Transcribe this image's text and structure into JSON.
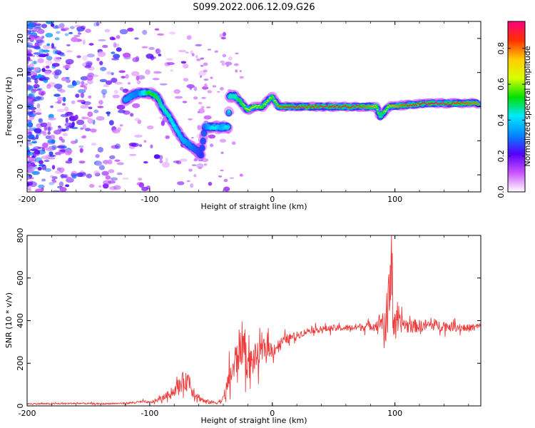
{
  "title": "S099.2022.006.12.09.G26",
  "colors": {
    "line": "#ef3b3b",
    "axis": "#000000",
    "blob_low": "#d7b8ff",
    "blob_mid": "#8f2cff",
    "blob_high": "#5b00e0",
    "green": "#00e000",
    "cyan": "#00c8ff",
    "blue": "#1f4cff",
    "red": "#ff0000",
    "yellow": "#ffd400"
  },
  "chart_data": [
    {
      "type": "heatmap",
      "xlabel": "Height of straight line (km)",
      "ylabel": "Frequency (Hz)",
      "xlim": [
        -200,
        170
      ],
      "ylim": [
        -25,
        25
      ],
      "xticks": [
        {
          "value": -200,
          "label": "-200"
        },
        {
          "value": -100,
          "label": "-100"
        },
        {
          "value": 0,
          "label": "0"
        },
        {
          "value": 100,
          "label": "100"
        }
      ],
      "yticks": [
        {
          "value": 20,
          "label": "20"
        },
        {
          "value": 10,
          "label": "10"
        },
        {
          "value": 0,
          "label": "0"
        },
        {
          "value": -10,
          "label": "-10"
        },
        {
          "value": -20,
          "label": "-20"
        }
      ],
      "colorbar": {
        "label": "Normalized spectral amplitude",
        "range": [
          0.0,
          0.95
        ],
        "ticks": [
          {
            "value": 0.0,
            "label": "0.0"
          },
          {
            "value": 0.2,
            "label": "0.2"
          },
          {
            "value": 0.4,
            "label": "0.4"
          },
          {
            "value": 0.6,
            "label": "0.6"
          },
          {
            "value": 0.8,
            "label": "0.8"
          }
        ],
        "colors": [
          "#ffffff",
          "#cc55ff",
          "#5500ff",
          "#0088ff",
          "#00e8ff",
          "#00e000",
          "#d8ff00",
          "#ffcc00",
          "#ff3000",
          "#ff0080"
        ]
      },
      "trace": [
        {
          "x": -120,
          "y": 2,
          "a": 0.35
        },
        {
          "x": -110,
          "y": 4,
          "a": 0.3
        },
        {
          "x": -100,
          "y": 4,
          "a": 0.55
        },
        {
          "x": -94,
          "y": 3,
          "a": 0.5
        },
        {
          "x": -90,
          "y": 0,
          "a": 0.45
        },
        {
          "x": -84,
          "y": -3,
          "a": 0.45
        },
        {
          "x": -78,
          "y": -7,
          "a": 0.4
        },
        {
          "x": -72,
          "y": -10,
          "a": 0.35
        },
        {
          "x": -65,
          "y": -12,
          "a": 0.3
        },
        {
          "x": -58,
          "y": -14,
          "a": 0.25
        },
        {
          "x": -55,
          "y": -6,
          "a": 0.3
        },
        {
          "x": -48,
          "y": -6,
          "a": 0.45
        },
        {
          "x": -42,
          "y": -6,
          "a": 0.35
        },
        {
          "x": -36,
          "y": -6,
          "a": 0.45
        },
        {
          "x": -35,
          "y": 3,
          "a": 0.45
        },
        {
          "x": -30,
          "y": 3,
          "a": 0.45
        },
        {
          "x": -25,
          "y": 1,
          "a": 0.55
        },
        {
          "x": -20,
          "y": -1,
          "a": 0.7
        },
        {
          "x": -15,
          "y": 0,
          "a": 0.72
        },
        {
          "x": -8,
          "y": 0,
          "a": 0.55
        },
        {
          "x": -3,
          "y": 2,
          "a": 0.72
        },
        {
          "x": 0,
          "y": 3,
          "a": 0.55
        },
        {
          "x": 5,
          "y": 0,
          "a": 0.8
        },
        {
          "x": 15,
          "y": 0,
          "a": 0.9
        },
        {
          "x": 30,
          "y": 0,
          "a": 0.85
        },
        {
          "x": 50,
          "y": 0,
          "a": 0.9
        },
        {
          "x": 70,
          "y": 0,
          "a": 0.85
        },
        {
          "x": 85,
          "y": 0,
          "a": 0.75
        },
        {
          "x": 88,
          "y": -3,
          "a": 0.45
        },
        {
          "x": 95,
          "y": 0,
          "a": 0.75
        },
        {
          "x": 110,
          "y": 0.5,
          "a": 0.85
        },
        {
          "x": 130,
          "y": 1,
          "a": 0.95
        },
        {
          "x": 150,
          "y": 1,
          "a": 0.85
        },
        {
          "x": 168,
          "y": 1,
          "a": 0.8
        }
      ]
    },
    {
      "type": "line",
      "xlabel": "Height of straight line (km)",
      "ylabel": "SNR (10 * v/v)",
      "xlim": [
        -200,
        170
      ],
      "ylim": [
        0,
        800
      ],
      "xticks": [
        {
          "value": -200,
          "label": "-200"
        },
        {
          "value": -100,
          "label": "-100"
        },
        {
          "value": 0,
          "label": "0"
        },
        {
          "value": 100,
          "label": "100"
        }
      ],
      "yticks": [
        {
          "value": 800,
          "label": "800"
        },
        {
          "value": 600,
          "label": "600"
        },
        {
          "value": 400,
          "label": "400"
        },
        {
          "value": 200,
          "label": "200"
        },
        {
          "value": 0,
          "label": "0"
        }
      ],
      "series": [
        {
          "name": "",
          "x": [
            -200,
            -180,
            -160,
            -140,
            -120,
            -105,
            -100,
            -90,
            -80,
            -72,
            -70,
            -68,
            -66,
            -60,
            -55,
            -45,
            -40,
            -34,
            -32,
            -28,
            -24,
            -20,
            -15,
            -10,
            -5,
            0,
            10,
            20,
            30,
            40,
            50,
            60,
            70,
            80,
            85,
            90,
            92,
            95,
            97,
            98,
            100,
            103,
            106,
            110,
            120,
            130,
            140,
            150,
            160,
            170
          ],
          "y": [
            10,
            10,
            12,
            10,
            12,
            20,
            15,
            35,
            70,
            120,
            110,
            130,
            80,
            40,
            20,
            15,
            30,
            150,
            170,
            250,
            300,
            190,
            220,
            240,
            280,
            260,
            310,
            330,
            355,
            360,
            365,
            365,
            370,
            375,
            380,
            410,
            320,
            500,
            800,
            450,
            360,
            380,
            390,
            375,
            375,
            380,
            375,
            370,
            365,
            375
          ],
          "noise": [
            5,
            6,
            6,
            5,
            6,
            10,
            10,
            20,
            40,
            80,
            70,
            90,
            60,
            30,
            20,
            12,
            30,
            120,
            140,
            160,
            180,
            120,
            120,
            100,
            80,
            60,
            40,
            30,
            25,
            25,
            25,
            25,
            30,
            35,
            40,
            100,
            200,
            280,
            300,
            250,
            120,
            80,
            70,
            60,
            50,
            45,
            40,
            35,
            30,
            25
          ]
        }
      ]
    }
  ]
}
